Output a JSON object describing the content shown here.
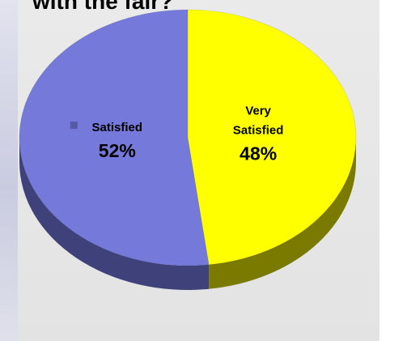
{
  "title": "with the fair?",
  "chart_data": {
    "type": "pie",
    "title": "with the fair?",
    "slices": [
      {
        "label": "Very Satisfied",
        "label_lines": [
          "Very",
          "Satisfied"
        ],
        "value": 48,
        "value_label": "48%",
        "color": "#ffff00",
        "side_color": "#7a7a00"
      },
      {
        "label": "Satisfied",
        "label_lines": [
          "Satisfied"
        ],
        "value": 52,
        "value_label": "52%",
        "color": "#7579d9",
        "side_color": "#3f427a"
      }
    ],
    "start_angle_deg": -90,
    "direction": "clockwise",
    "style": "3d",
    "legend": "none"
  }
}
